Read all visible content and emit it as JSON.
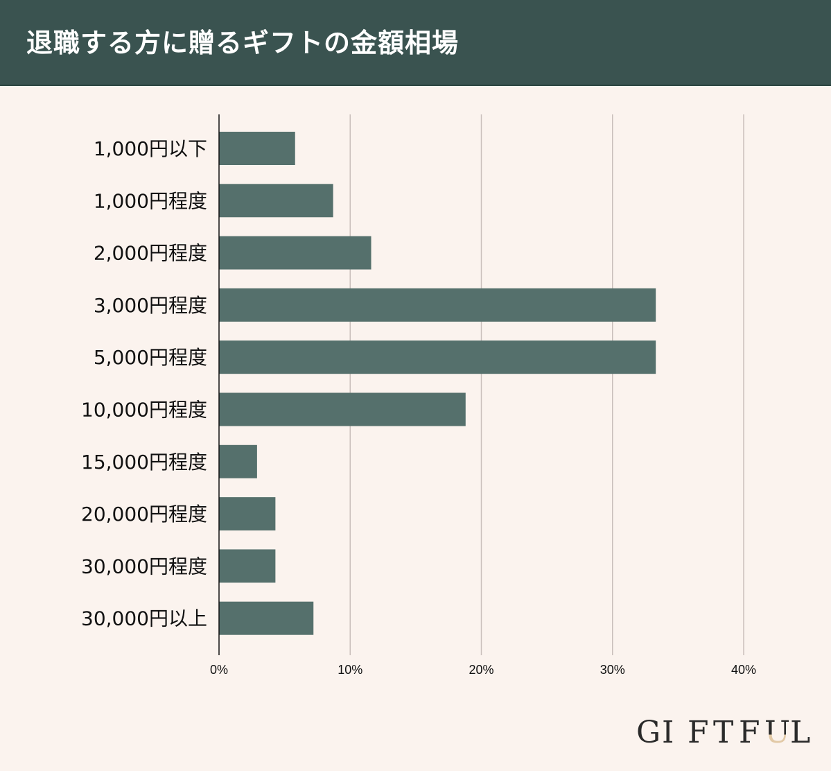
{
  "title": "退職する方に贈るギフトの金額相場",
  "colors": {
    "header_bg": "#3a5350",
    "background": "#fbf3ee",
    "bar": "#55706c",
    "grid": "#c9bfbb",
    "axis": "#111111",
    "logo_accent": "#e2c9a6"
  },
  "logo": {
    "letters": [
      "G",
      "I",
      "F",
      "T",
      "F",
      "U",
      "L"
    ]
  },
  "chart_data": {
    "type": "bar",
    "orientation": "horizontal",
    "title": "",
    "xlabel": "",
    "ylabel": "",
    "categories": [
      "1,000円以下",
      "1,000円程度",
      "2,000円程度",
      "3,000円程度",
      "5,000円程度",
      "10,000円程度",
      "15,000円程度",
      "20,000円程度",
      "30,000円程度",
      "30,000円以上"
    ],
    "values": [
      5.8,
      8.7,
      11.6,
      33.3,
      33.3,
      18.8,
      2.9,
      4.3,
      4.3,
      7.2
    ],
    "xlim": [
      0,
      40
    ],
    "xticks": [
      0,
      10,
      20,
      30,
      40
    ],
    "xtick_labels": [
      "0%",
      "10%",
      "20%",
      "30%",
      "40%"
    ],
    "grid": "vertical",
    "legend": "none"
  }
}
